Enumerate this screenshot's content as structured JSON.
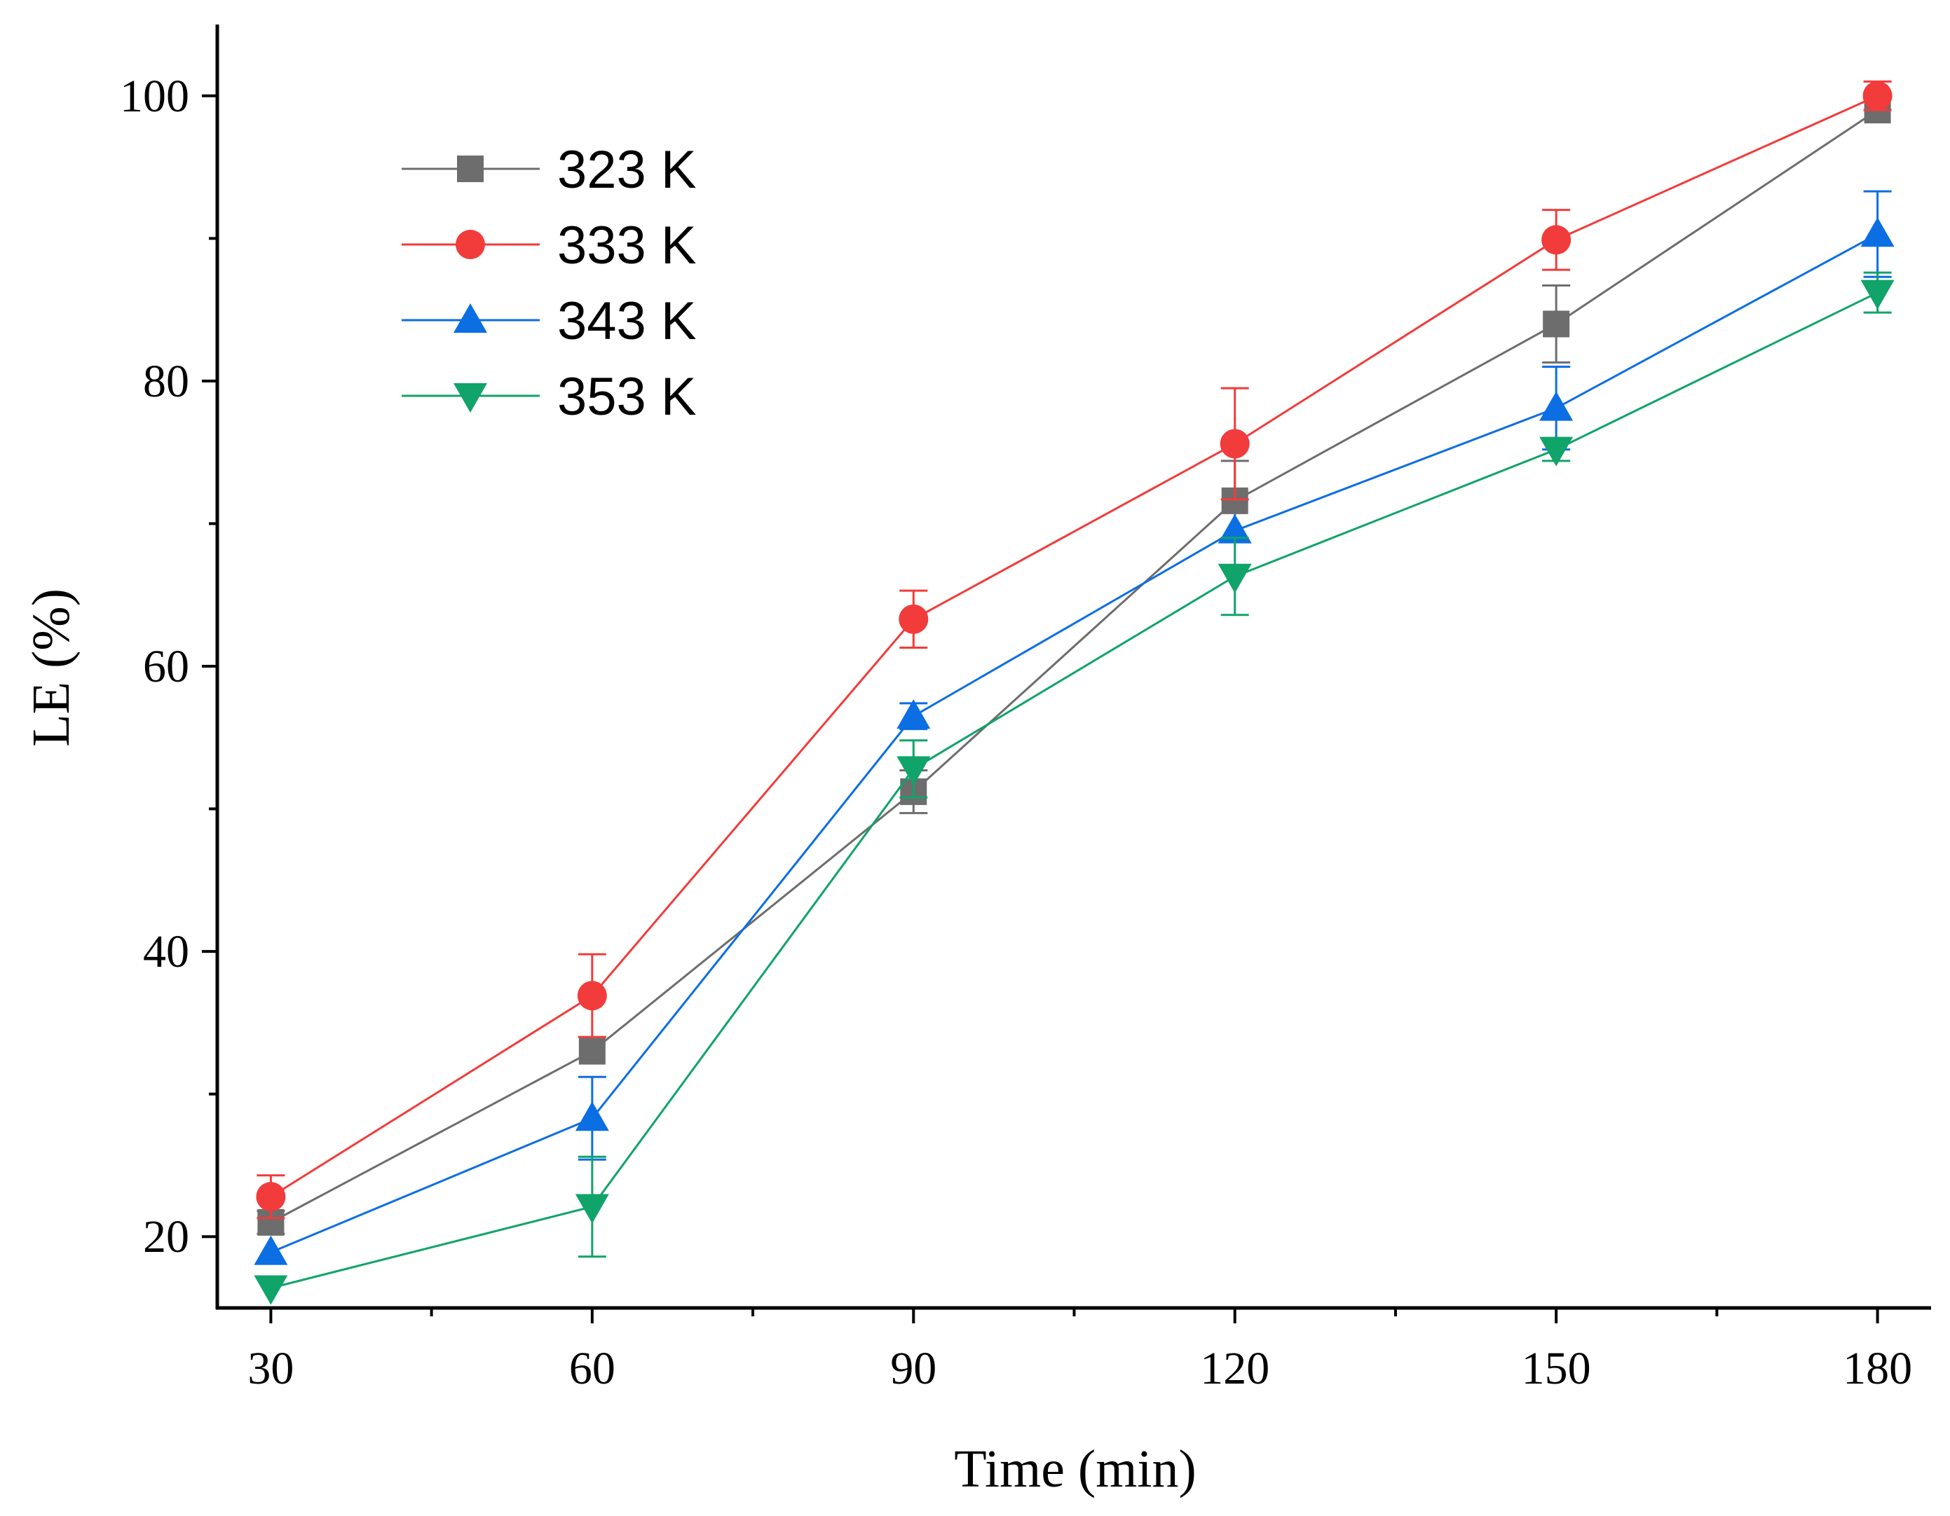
{
  "chart_data": {
    "type": "line",
    "xlabel": "Time (min)",
    "ylabel": "LE (%)",
    "x": [
      30,
      60,
      90,
      120,
      150,
      180
    ],
    "xlim": [
      25,
      185
    ],
    "ylim": [
      15,
      105
    ],
    "xticks": [
      30,
      60,
      90,
      120,
      150,
      180
    ],
    "yticks": [
      20,
      40,
      60,
      80,
      100
    ],
    "legend_position": "top-left",
    "series": [
      {
        "name": "323 K",
        "color": "#6d6d6d",
        "marker": "square",
        "values": [
          21.0,
          33.0,
          51.2,
          71.6,
          84.0,
          99.0
        ],
        "errors": [
          0.8,
          0.0,
          1.5,
          2.8,
          2.7,
          0.0
        ]
      },
      {
        "name": "333 K",
        "color": "#f23b3b",
        "marker": "circle",
        "values": [
          22.8,
          36.9,
          63.3,
          75.6,
          89.9,
          100.0
        ],
        "errors": [
          1.5,
          2.9,
          2.0,
          3.9,
          2.1,
          1.0
        ]
      },
      {
        "name": "343 K",
        "color": "#0b6ee3",
        "marker": "triangle-up",
        "values": [
          18.9,
          28.3,
          56.5,
          69.5,
          78.1,
          90.3
        ],
        "errors": [
          0.0,
          2.9,
          0.9,
          0.0,
          2.9,
          3.0
        ]
      },
      {
        "name": "353 K",
        "color": "#10a36a",
        "marker": "triangle-down",
        "values": [
          16.4,
          22.1,
          52.8,
          66.3,
          75.2,
          86.2
        ],
        "errors": [
          0.0,
          3.5,
          2.0,
          2.7,
          0.8,
          1.4
        ]
      }
    ]
  }
}
